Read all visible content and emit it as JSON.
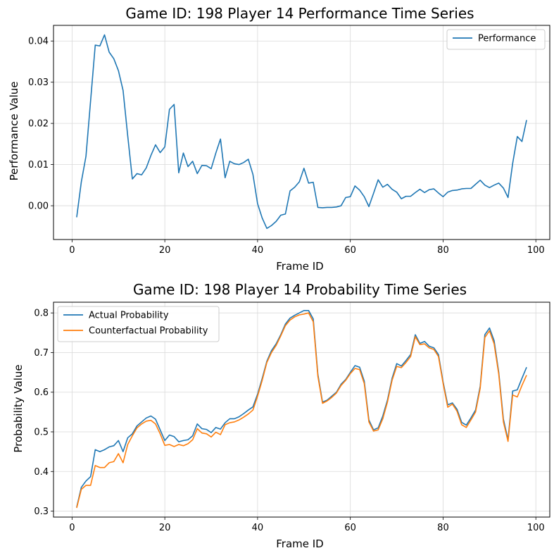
{
  "colors": {
    "blue": "#1f77b4",
    "orange": "#ff7f0e",
    "grid": "#d9d9d9"
  },
  "chart_data": [
    {
      "type": "line",
      "title": "Game ID: 198 Player 14 Performance Time Series",
      "xlabel": "Frame ID",
      "ylabel": "Performance Value",
      "xlim": [
        -4,
        103
      ],
      "ylim": [
        -0.0082,
        0.0438
      ],
      "xticks": [
        0,
        20,
        40,
        60,
        80,
        100
      ],
      "yticks": [
        0.0,
        0.01,
        0.02,
        0.03,
        0.04
      ],
      "ytick_labels": [
        "0.00",
        "0.01",
        "0.02",
        "0.03",
        "0.04"
      ],
      "grid": true,
      "legend_position": "top-right",
      "x": [
        1,
        2,
        3,
        4,
        5,
        6,
        7,
        8,
        9,
        10,
        11,
        12,
        13,
        14,
        15,
        16,
        17,
        18,
        19,
        20,
        21,
        22,
        23,
        24,
        25,
        26,
        27,
        28,
        29,
        30,
        31,
        32,
        33,
        34,
        35,
        36,
        37,
        38,
        39,
        40,
        41,
        42,
        43,
        44,
        45,
        46,
        47,
        48,
        49,
        50,
        51,
        52,
        53,
        54,
        55,
        56,
        57,
        58,
        59,
        60,
        61,
        62,
        63,
        64,
        65,
        66,
        67,
        68,
        69,
        70,
        71,
        72,
        73,
        74,
        75,
        76,
        77,
        78,
        79,
        80,
        81,
        82,
        83,
        84,
        85,
        86,
        87,
        88,
        89,
        90,
        91,
        92,
        93,
        94,
        95,
        96,
        97,
        98
      ],
      "series": [
        {
          "name": "Performance",
          "color": "#1f77b4",
          "values": [
            -0.0028,
            0.0058,
            0.012,
            0.0255,
            0.039,
            0.0388,
            0.0415,
            0.0373,
            0.0357,
            0.0328,
            0.028,
            0.017,
            0.0065,
            0.0078,
            0.0075,
            0.0092,
            0.0122,
            0.0148,
            0.0129,
            0.0143,
            0.0234,
            0.0246,
            0.008,
            0.0128,
            0.0095,
            0.0108,
            0.0078,
            0.0098,
            0.0097,
            0.009,
            0.0128,
            0.0162,
            0.0068,
            0.0108,
            0.0102,
            0.01,
            0.0105,
            0.0113,
            0.0076,
            0.0005,
            -0.003,
            -0.0055,
            -0.0048,
            -0.0038,
            -0.0023,
            -0.002,
            0.0036,
            0.0045,
            0.0058,
            0.0091,
            0.0055,
            0.0057,
            -0.0004,
            -0.0005,
            -0.0004,
            -0.0004,
            -0.0003,
            0.0,
            0.002,
            0.0022,
            0.0048,
            0.0038,
            0.0022,
            -0.0002,
            0.003,
            0.0063,
            0.0045,
            0.0052,
            0.004,
            0.0033,
            0.0017,
            0.0023,
            0.0023,
            0.0032,
            0.004,
            0.0032,
            0.0039,
            0.0041,
            0.0031,
            0.0022,
            0.0033,
            0.0037,
            0.0038,
            0.0041,
            0.0042,
            0.0042,
            0.0052,
            0.0062,
            0.005,
            0.0044,
            0.005,
            0.0055,
            0.0043,
            0.002,
            0.0103,
            0.0168,
            0.0156,
            0.0208
          ]
        }
      ]
    },
    {
      "type": "line",
      "title": "Game ID: 198 Player 14 Probability Time Series",
      "xlabel": "Frame ID",
      "ylabel": "Probability Value",
      "xlim": [
        -4,
        103
      ],
      "ylim": [
        0.285,
        0.827
      ],
      "xticks": [
        0,
        20,
        40,
        60,
        80,
        100
      ],
      "yticks": [
        0.3,
        0.4,
        0.5,
        0.6,
        0.7,
        0.8
      ],
      "ytick_labels": [
        "0.3",
        "0.4",
        "0.5",
        "0.6",
        "0.7",
        "0.8"
      ],
      "grid": true,
      "legend_position": "top-left",
      "x": [
        1,
        2,
        3,
        4,
        5,
        6,
        7,
        8,
        9,
        10,
        11,
        12,
        13,
        14,
        15,
        16,
        17,
        18,
        19,
        20,
        21,
        22,
        23,
        24,
        25,
        26,
        27,
        28,
        29,
        30,
        31,
        32,
        33,
        34,
        35,
        36,
        37,
        38,
        39,
        40,
        41,
        42,
        43,
        44,
        45,
        46,
        47,
        48,
        49,
        50,
        51,
        52,
        53,
        54,
        55,
        56,
        57,
        58,
        59,
        60,
        61,
        62,
        63,
        64,
        65,
        66,
        67,
        68,
        69,
        70,
        71,
        72,
        73,
        74,
        75,
        76,
        77,
        78,
        79,
        80,
        81,
        82,
        83,
        84,
        85,
        86,
        87,
        88,
        89,
        90,
        91,
        92,
        93,
        94,
        95,
        96,
        97,
        98
      ],
      "series": [
        {
          "name": "Actual Probability",
          "color": "#1f77b4",
          "values": [
            0.31,
            0.36,
            0.376,
            0.387,
            0.455,
            0.45,
            0.455,
            0.462,
            0.465,
            0.478,
            0.45,
            0.485,
            0.495,
            0.515,
            0.525,
            0.535,
            0.54,
            0.532,
            0.505,
            0.478,
            0.492,
            0.488,
            0.475,
            0.478,
            0.48,
            0.49,
            0.52,
            0.508,
            0.506,
            0.498,
            0.511,
            0.507,
            0.523,
            0.533,
            0.533,
            0.538,
            0.546,
            0.555,
            0.563,
            0.595,
            0.635,
            0.678,
            0.705,
            0.722,
            0.745,
            0.772,
            0.787,
            0.794,
            0.8,
            0.806,
            0.806,
            0.785,
            0.645,
            0.575,
            0.58,
            0.59,
            0.6,
            0.62,
            0.632,
            0.65,
            0.667,
            0.663,
            0.628,
            0.53,
            0.505,
            0.51,
            0.54,
            0.58,
            0.635,
            0.672,
            0.666,
            0.68,
            0.695,
            0.745,
            0.723,
            0.728,
            0.716,
            0.712,
            0.695,
            0.626,
            0.568,
            0.573,
            0.557,
            0.524,
            0.517,
            0.535,
            0.555,
            0.615,
            0.745,
            0.762,
            0.73,
            0.65,
            0.532,
            0.48,
            0.603,
            0.606,
            0.635,
            0.663
          ]
        },
        {
          "name": "Counterfactual Probability",
          "color": "#ff7f0e",
          "values": [
            0.308,
            0.355,
            0.365,
            0.365,
            0.415,
            0.41,
            0.41,
            0.422,
            0.425,
            0.445,
            0.422,
            0.468,
            0.49,
            0.51,
            0.52,
            0.527,
            0.529,
            0.52,
            0.495,
            0.466,
            0.468,
            0.463,
            0.468,
            0.465,
            0.47,
            0.48,
            0.508,
            0.497,
            0.495,
            0.487,
            0.499,
            0.493,
            0.518,
            0.523,
            0.525,
            0.53,
            0.537,
            0.545,
            0.555,
            0.59,
            0.63,
            0.675,
            0.7,
            0.718,
            0.742,
            0.768,
            0.782,
            0.79,
            0.795,
            0.797,
            0.8,
            0.778,
            0.64,
            0.572,
            0.578,
            0.587,
            0.598,
            0.617,
            0.63,
            0.647,
            0.66,
            0.657,
            0.622,
            0.525,
            0.502,
            0.505,
            0.533,
            0.575,
            0.63,
            0.665,
            0.662,
            0.675,
            0.69,
            0.74,
            0.72,
            0.722,
            0.712,
            0.708,
            0.69,
            0.622,
            0.562,
            0.57,
            0.552,
            0.518,
            0.511,
            0.53,
            0.55,
            0.61,
            0.738,
            0.755,
            0.722,
            0.645,
            0.525,
            0.476,
            0.593,
            0.588,
            0.617,
            0.643
          ]
        }
      ]
    }
  ]
}
